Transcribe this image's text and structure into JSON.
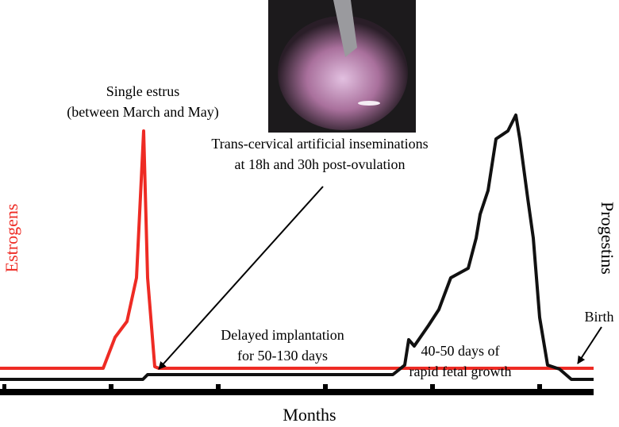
{
  "labels": {
    "estrus": "Single estrus",
    "estrus_period": "(between March and May)",
    "insemination": "Trans-cervical artificial inseminations",
    "insemination_timing": "at 18h and 30h post-ovulation",
    "estrogens": "Estrogens",
    "progestins": "Progestins",
    "delayed": "Delayed implantation",
    "delayed_period": "for 50-130 days",
    "growth": "40-50 days of",
    "growth_desc": "rapid fetal growth",
    "birth": "Birth",
    "months": "Months"
  }
}
